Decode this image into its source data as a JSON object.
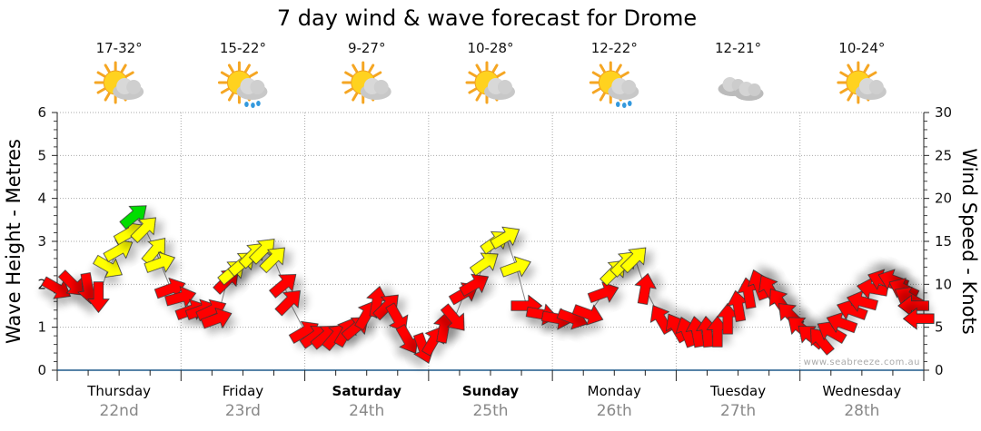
{
  "chart_data": {
    "type": "scatter",
    "title": "7 day wind & wave forecast for Drome",
    "ylabel": "Wave Height - Metres",
    "y2label": "Wind Speed - Knots",
    "ylim": [
      0,
      6
    ],
    "y2lim": [
      0,
      30
    ],
    "yticks": [
      "0",
      "1",
      "2",
      "3",
      "4",
      "5",
      "6"
    ],
    "y2ticks": [
      "0",
      "5",
      "10",
      "15",
      "20",
      "25",
      "30"
    ],
    "grid": true,
    "watermark": "www.seabreeze.com.au",
    "days": [
      {
        "name": "Thursday",
        "date": "22nd",
        "temp": "17-32°",
        "weather": "sun-cloud",
        "bold": false
      },
      {
        "name": "Friday",
        "date": "23rd",
        "temp": "15-22°",
        "weather": "sun-cloud-rain",
        "bold": false
      },
      {
        "name": "Saturday",
        "date": "24th",
        "temp": "9-27°",
        "weather": "sun-cloud",
        "bold": true
      },
      {
        "name": "Sunday",
        "date": "25th",
        "temp": "10-28°",
        "weather": "sun-cloud",
        "bold": true
      },
      {
        "name": "Monday",
        "date": "26th",
        "temp": "12-22°",
        "weather": "sun-cloud-rain",
        "bold": false
      },
      {
        "name": "Tuesday",
        "date": "27th",
        "temp": "12-21°",
        "weather": "cloud",
        "bold": false
      },
      {
        "name": "Wednesday",
        "date": "28th",
        "temp": "10-24°",
        "weather": "sun-cloud",
        "bold": false
      }
    ],
    "colors": {
      "low": "#ff0000",
      "mid": "#ffff00",
      "high": "#00dd00"
    },
    "series": [
      {
        "name": "Wave height (m) with wind arrow direction (deg) and wind band",
        "points": [
          {
            "h": 0,
            "wave": 1.9,
            "dir": -30,
            "band": "low"
          },
          {
            "h": 3,
            "wave": 2.0,
            "dir": -45,
            "band": "low"
          },
          {
            "h": 6,
            "wave": 1.9,
            "dir": -80,
            "band": "low"
          },
          {
            "h": 8,
            "wave": 1.7,
            "dir": -90,
            "band": "low"
          },
          {
            "h": 10,
            "wave": 2.4,
            "dir": -30,
            "band": "mid"
          },
          {
            "h": 12,
            "wave": 2.8,
            "dir": 30,
            "band": "mid"
          },
          {
            "h": 14,
            "wave": 3.2,
            "dir": 30,
            "band": "mid"
          },
          {
            "h": 15,
            "wave": 3.6,
            "dir": 40,
            "band": "high"
          },
          {
            "h": 17,
            "wave": 3.3,
            "dir": 45,
            "band": "mid"
          },
          {
            "h": 19,
            "wave": 2.8,
            "dir": 50,
            "band": "mid"
          },
          {
            "h": 20,
            "wave": 2.5,
            "dir": 20,
            "band": "mid"
          },
          {
            "h": 22,
            "wave": 1.9,
            "dir": 20,
            "band": "low"
          },
          {
            "h": 24,
            "wave": 1.7,
            "dir": 15,
            "band": "low"
          },
          {
            "h": 26,
            "wave": 1.4,
            "dir": 20,
            "band": "low"
          },
          {
            "h": 28,
            "wave": 1.4,
            "dir": 20,
            "band": "low"
          },
          {
            "h": 30,
            "wave": 1.4,
            "dir": 25,
            "band": "low"
          },
          {
            "h": 31,
            "wave": 1.2,
            "dir": 20,
            "band": "low"
          },
          {
            "h": 33,
            "wave": 2.1,
            "dir": 45,
            "band": "low"
          },
          {
            "h": 34,
            "wave": 2.3,
            "dir": 40,
            "band": "mid"
          },
          {
            "h": 36,
            "wave": 2.5,
            "dir": 40,
            "band": "mid"
          },
          {
            "h": 38,
            "wave": 2.7,
            "dir": 45,
            "band": "mid"
          },
          {
            "h": 40,
            "wave": 2.8,
            "dir": 45,
            "band": "mid"
          },
          {
            "h": 42,
            "wave": 2.6,
            "dir": 45,
            "band": "mid"
          },
          {
            "h": 44,
            "wave": 2.0,
            "dir": 40,
            "band": "low"
          },
          {
            "h": 45,
            "wave": 1.6,
            "dir": 45,
            "band": "low"
          },
          {
            "h": 48,
            "wave": 0.9,
            "dir": 30,
            "band": "low"
          },
          {
            "h": 50,
            "wave": 0.8,
            "dir": 35,
            "band": "low"
          },
          {
            "h": 52,
            "wave": 0.8,
            "dir": 40,
            "band": "low"
          },
          {
            "h": 54,
            "wave": 0.8,
            "dir": 50,
            "band": "low"
          },
          {
            "h": 56,
            "wave": 0.9,
            "dir": 60,
            "band": "low"
          },
          {
            "h": 58,
            "wave": 1.0,
            "dir": 40,
            "band": "low"
          },
          {
            "h": 60,
            "wave": 1.3,
            "dir": 60,
            "band": "low"
          },
          {
            "h": 62,
            "wave": 1.6,
            "dir": 80,
            "band": "low"
          },
          {
            "h": 64,
            "wave": 1.5,
            "dir": 45,
            "band": "low"
          },
          {
            "h": 66,
            "wave": 1.2,
            "dir": -60,
            "band": "low"
          },
          {
            "h": 68,
            "wave": 0.7,
            "dir": -60,
            "band": "low"
          },
          {
            "h": 71,
            "wave": 0.5,
            "dir": -70,
            "band": "low"
          },
          {
            "h": 73,
            "wave": 0.7,
            "dir": 60,
            "band": "low"
          },
          {
            "h": 75,
            "wave": 1.0,
            "dir": 80,
            "band": "low"
          },
          {
            "h": 77,
            "wave": 1.2,
            "dir": -50,
            "band": "low"
          },
          {
            "h": 79,
            "wave": 1.8,
            "dir": 30,
            "band": "low"
          },
          {
            "h": 81,
            "wave": 2.0,
            "dir": 30,
            "band": "low"
          },
          {
            "h": 83,
            "wave": 2.5,
            "dir": 35,
            "band": "mid"
          },
          {
            "h": 85,
            "wave": 3.0,
            "dir": 35,
            "band": "mid"
          },
          {
            "h": 87,
            "wave": 3.1,
            "dir": 30,
            "band": "mid"
          },
          {
            "h": 89,
            "wave": 2.4,
            "dir": 20,
            "band": "mid"
          },
          {
            "h": 91,
            "wave": 1.5,
            "dir": 0,
            "band": "low"
          },
          {
            "h": 94,
            "wave": 1.3,
            "dir": -10,
            "band": "low"
          },
          {
            "h": 97,
            "wave": 1.2,
            "dir": -10,
            "band": "low"
          },
          {
            "h": 100,
            "wave": 1.2,
            "dir": -20,
            "band": "low"
          },
          {
            "h": 103,
            "wave": 1.3,
            "dir": -20,
            "band": "low"
          },
          {
            "h": 106,
            "wave": 1.8,
            "dir": 20,
            "band": "low"
          },
          {
            "h": 108,
            "wave": 2.3,
            "dir": 45,
            "band": "mid"
          },
          {
            "h": 110,
            "wave": 2.5,
            "dir": 45,
            "band": "mid"
          },
          {
            "h": 112,
            "wave": 2.6,
            "dir": 45,
            "band": "mid"
          },
          {
            "h": 114,
            "wave": 1.9,
            "dir": 80,
            "band": "low"
          },
          {
            "h": 117,
            "wave": 1.2,
            "dir": 120,
            "band": "low"
          },
          {
            "h": 120,
            "wave": 1.0,
            "dir": 120,
            "band": "low"
          },
          {
            "h": 122,
            "wave": 0.9,
            "dir": 110,
            "band": "low"
          },
          {
            "h": 124,
            "wave": 0.9,
            "dir": 100,
            "band": "low"
          },
          {
            "h": 126,
            "wave": 0.9,
            "dir": 95,
            "band": "low"
          },
          {
            "h": 128,
            "wave": 0.9,
            "dir": 90,
            "band": "low"
          },
          {
            "h": 130,
            "wave": 1.2,
            "dir": 90,
            "band": "low"
          },
          {
            "h": 132,
            "wave": 1.5,
            "dir": 100,
            "band": "low"
          },
          {
            "h": 134,
            "wave": 1.8,
            "dir": 100,
            "band": "low"
          },
          {
            "h": 136,
            "wave": 2.0,
            "dir": 110,
            "band": "low"
          },
          {
            "h": 138,
            "wave": 1.9,
            "dir": 120,
            "band": "low"
          },
          {
            "h": 140,
            "wave": 1.6,
            "dir": 125,
            "band": "low"
          },
          {
            "h": 142,
            "wave": 1.3,
            "dir": 135,
            "band": "low"
          },
          {
            "h": 144,
            "wave": 1.0,
            "dir": 140,
            "band": "low"
          },
          {
            "h": 146,
            "wave": 0.8,
            "dir": 140,
            "band": "low"
          },
          {
            "h": 148,
            "wave": 0.7,
            "dir": 130,
            "band": "low"
          },
          {
            "h": 150,
            "wave": 0.9,
            "dir": 150,
            "band": "low"
          },
          {
            "h": 152,
            "wave": 1.1,
            "dir": 160,
            "band": "low"
          },
          {
            "h": 154,
            "wave": 1.4,
            "dir": 160,
            "band": "low"
          },
          {
            "h": 156,
            "wave": 1.6,
            "dir": 165,
            "band": "low"
          },
          {
            "h": 158,
            "wave": 1.9,
            "dir": 170,
            "band": "low"
          },
          {
            "h": 160,
            "wave": 2.1,
            "dir": 160,
            "band": "low"
          },
          {
            "h": 162,
            "wave": 2.1,
            "dir": 160,
            "band": "low"
          },
          {
            "h": 164,
            "wave": 1.9,
            "dir": 155,
            "band": "low"
          },
          {
            "h": 165,
            "wave": 1.7,
            "dir": 150,
            "band": "low"
          },
          {
            "h": 166,
            "wave": 1.5,
            "dir": 180,
            "band": "low"
          },
          {
            "h": 167,
            "wave": 1.2,
            "dir": 180,
            "band": "low"
          }
        ]
      }
    ]
  }
}
